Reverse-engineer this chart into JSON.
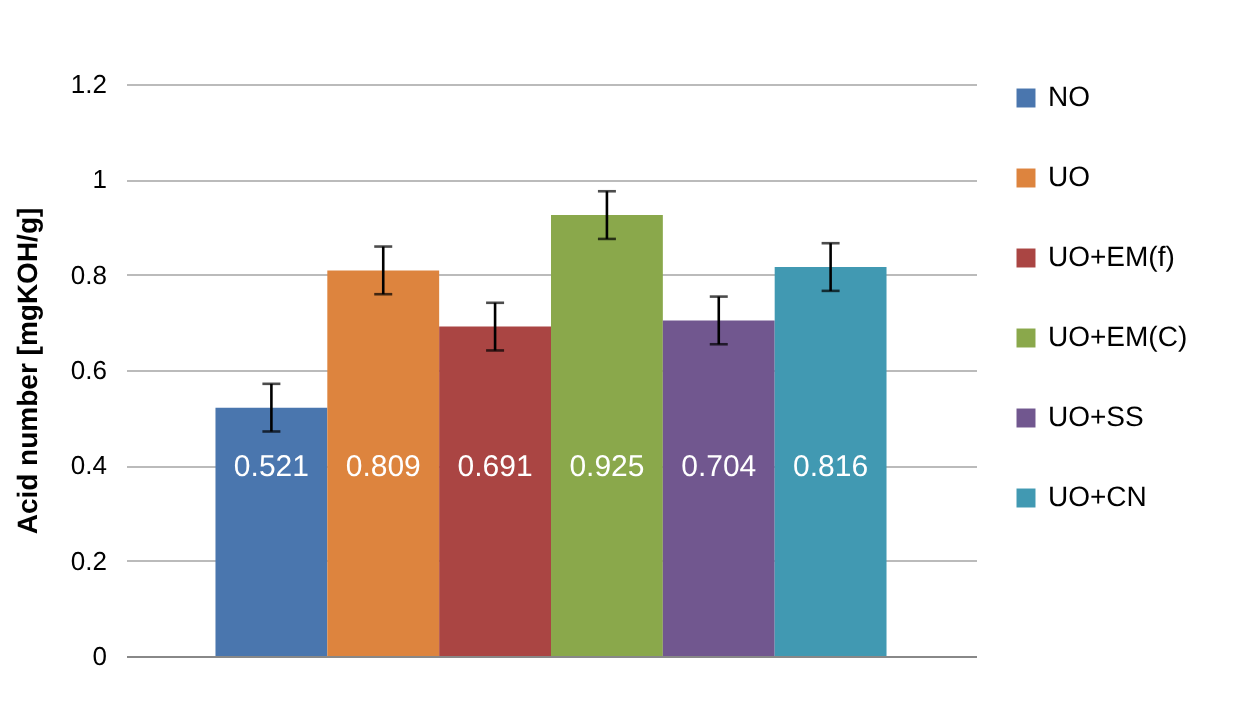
{
  "chart_data": {
    "type": "bar",
    "ylabel": "Acid number [mgKOH/g]",
    "categories": [
      null
    ],
    "series": [
      {
        "name": "NO",
        "color": "#4a76ae",
        "values": [
          0.521
        ],
        "errors": [
          0.05
        ]
      },
      {
        "name": "UO",
        "color": "#dd843e",
        "values": [
          0.809
        ],
        "errors": [
          0.05
        ]
      },
      {
        "name": "UO+EM(f)",
        "color": "#aa4543",
        "values": [
          0.691
        ],
        "errors": [
          0.05
        ]
      },
      {
        "name": "UO+EM(C)",
        "color": "#8aa84b",
        "values": [
          0.925
        ],
        "errors": [
          0.05
        ]
      },
      {
        "name": "UO+SS",
        "color": "#71578f",
        "values": [
          0.704
        ],
        "errors": [
          0.05
        ]
      },
      {
        "name": "UO+CN",
        "color": "#4199b2",
        "values": [
          0.816
        ],
        "errors": [
          0.05
        ]
      }
    ],
    "ylim": [
      0,
      1.2
    ],
    "yticks": [
      0,
      0.2,
      0.4,
      0.6,
      0.8,
      1,
      1.2
    ],
    "grid": "y",
    "legend": "right",
    "tick_labels": "y",
    "data_labels": true
  }
}
